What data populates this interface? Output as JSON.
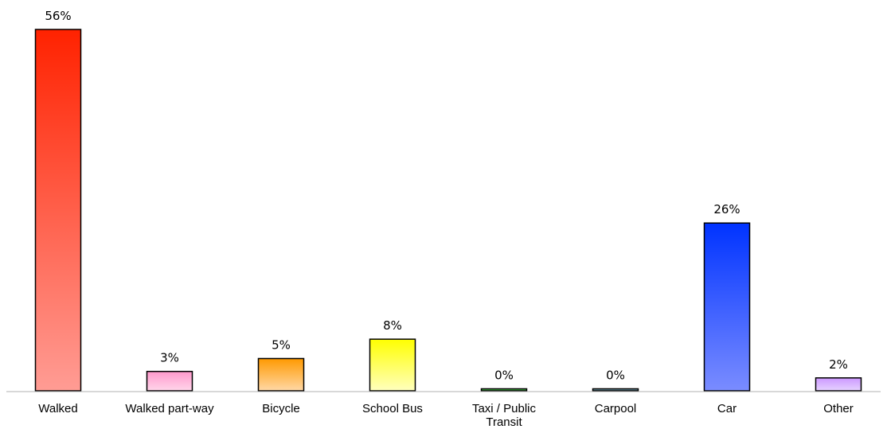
{
  "chart_data": {
    "type": "bar",
    "title": "",
    "xlabel": "",
    "ylabel": "",
    "ylim": [
      0,
      56
    ],
    "grid": false,
    "legend": "none",
    "categories": [
      "Walked",
      "Walked part-way",
      "Bicycle",
      "School Bus",
      "Taxi / Public Transit",
      "Carpool",
      "Car",
      "Other"
    ],
    "category_label_lines": [
      [
        "Walked"
      ],
      [
        "Walked part-way"
      ],
      [
        "Bicycle"
      ],
      [
        "School Bus"
      ],
      [
        "Taxi / Public",
        "Transit"
      ],
      [
        "Carpool"
      ],
      [
        "Car"
      ],
      [
        "Other"
      ]
    ],
    "values": [
      56,
      3,
      5,
      8,
      0,
      0,
      26,
      2
    ],
    "value_labels": [
      "56%",
      "3%",
      "5%",
      "8%",
      "0%",
      "0%",
      "26%",
      "2%"
    ],
    "colors": [
      {
        "top": "#ff2200",
        "bottom": "#ff9c94"
      },
      {
        "top": "#ff99cc",
        "bottom": "#ffd6ea"
      },
      {
        "top": "#ff9900",
        "bottom": "#ffd8a6"
      },
      {
        "top": "#ffff00",
        "bottom": "#ffffbe"
      },
      {
        "top": "#22aa22",
        "bottom": "#66cc66"
      },
      {
        "top": "#4a7a8a",
        "bottom": "#8ab0bc"
      },
      {
        "top": "#0033ff",
        "bottom": "#7a8cff"
      },
      {
        "top": "#cc99ff",
        "bottom": "#e6d2ff"
      }
    ]
  }
}
